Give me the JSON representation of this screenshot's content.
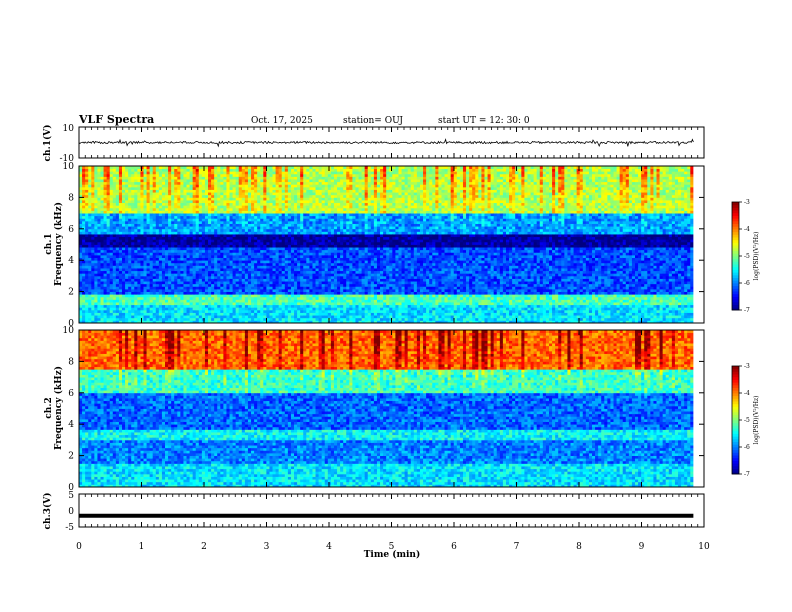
{
  "header": {
    "title": "VLF Spectra",
    "date": "Oct. 17, 2025",
    "station": "station= OUJ",
    "start": "start  UT  =   12: 30: 0"
  },
  "chart_data": [
    {
      "type": "line",
      "panel": "ch1-waveform",
      "ylabel": "ch.1(V)",
      "ylim": [
        -10,
        10
      ],
      "yticks": [
        "10",
        "-10"
      ],
      "description_value": "noise trace around 0 V",
      "baseline": 0.0,
      "x_range_min": [
        0,
        9.83
      ]
    },
    {
      "type": "heatmap",
      "panel": "ch1-spectrogram",
      "ylabel": "ch.1\nFrequency (kHz)",
      "ylabel_lines": [
        "ch.1",
        "Frequency (kHz)"
      ],
      "ylim": [
        0,
        10
      ],
      "yticks": [
        "0",
        "2",
        "4",
        "6",
        "8",
        "10"
      ],
      "x_range_min": [
        0,
        9.83
      ],
      "colorbar": {
        "min": -7,
        "max": -3,
        "ticks": [
          "-3",
          "-4",
          "-5",
          "-6",
          "-7"
        ],
        "label": "log(PSD)(V²/Hz)"
      },
      "band_levels_kHz": [
        {
          "f0": 0,
          "f1": 1.2,
          "level": -5.6
        },
        {
          "f0": 1.2,
          "f1": 1.8,
          "level": -5.2
        },
        {
          "f0": 1.8,
          "f1": 4.8,
          "level": -6.2
        },
        {
          "f0": 4.8,
          "f1": 5.6,
          "level": -6.9
        },
        {
          "f0": 5.6,
          "f1": 7.0,
          "level": -5.9
        },
        {
          "f0": 7.0,
          "f1": 10,
          "level": -4.8
        }
      ]
    },
    {
      "type": "heatmap",
      "panel": "ch2-spectrogram",
      "ylabel_lines": [
        "ch.2",
        "Frequency (kHz)"
      ],
      "ylim": [
        0,
        10
      ],
      "yticks": [
        "0",
        "2",
        "4",
        "6",
        "8",
        "10"
      ],
      "x_range_min": [
        0,
        9.83
      ],
      "colorbar": {
        "min": -7,
        "max": -3,
        "ticks": [
          "-3",
          "-4",
          "-5",
          "-6",
          "-7"
        ],
        "label": "log(PSD)(V²/Hz)"
      },
      "band_levels_kHz": [
        {
          "f0": 0,
          "f1": 1.5,
          "level": -5.6
        },
        {
          "f0": 1.5,
          "f1": 3.0,
          "level": -6.0
        },
        {
          "f0": 3.0,
          "f1": 3.6,
          "level": -5.5
        },
        {
          "f0": 3.6,
          "f1": 6.0,
          "level": -6.1
        },
        {
          "f0": 6.0,
          "f1": 7.5,
          "level": -5.3
        },
        {
          "f0": 7.5,
          "f1": 10,
          "level": -3.9
        }
      ]
    },
    {
      "type": "line",
      "panel": "ch3-waveform",
      "ylabel": "ch.3(V)",
      "ylim": [
        -5,
        5
      ],
      "yticks": [
        "5",
        "0",
        "-5"
      ],
      "constant_value": -1.6,
      "x_range_min": [
        0,
        9.83
      ]
    }
  ],
  "xaxis": {
    "label": "Time  (min)",
    "range": [
      0,
      10
    ],
    "ticks": [
      "0",
      "1",
      "2",
      "3",
      "4",
      "5",
      "6",
      "7",
      "8",
      "9",
      "10"
    ]
  }
}
